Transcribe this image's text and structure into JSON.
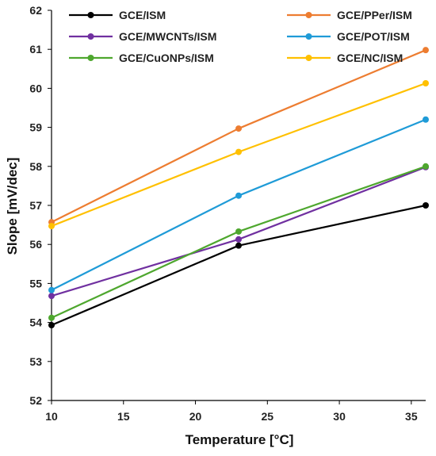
{
  "chart_data": {
    "type": "line",
    "title": "",
    "xlabel": "Temperature [°C]",
    "ylabel": "Slope [mV/dec]",
    "xlim": [
      10,
      36
    ],
    "ylim": [
      52,
      62
    ],
    "xticks": [
      10,
      15,
      20,
      25,
      30,
      35
    ],
    "yticks": [
      52,
      53,
      54,
      55,
      56,
      57,
      58,
      59,
      60,
      61,
      62
    ],
    "grid": false,
    "legend_position": "top",
    "x": [
      10,
      23,
      36
    ],
    "series": [
      {
        "name": "GCE/ISM",
        "color": "#000000",
        "values": [
          53.93,
          55.97,
          57.0
        ]
      },
      {
        "name": "GCE/PPer/ISM",
        "color": "#ED7D31",
        "values": [
          56.57,
          58.97,
          60.98
        ]
      },
      {
        "name": "GCE/MWCNTs/ISM",
        "color": "#7030A0",
        "values": [
          54.68,
          56.13,
          57.98
        ]
      },
      {
        "name": "GCE/POT/ISM",
        "color": "#1F9BD7",
        "values": [
          54.83,
          57.25,
          59.2
        ]
      },
      {
        "name": "GCE/CuONPs/ISM",
        "color": "#4EA72E",
        "values": [
          54.12,
          56.33,
          58.0
        ]
      },
      {
        "name": "GCE/NC/ISM",
        "color": "#FFC000",
        "values": [
          56.47,
          58.37,
          60.13
        ]
      }
    ]
  }
}
